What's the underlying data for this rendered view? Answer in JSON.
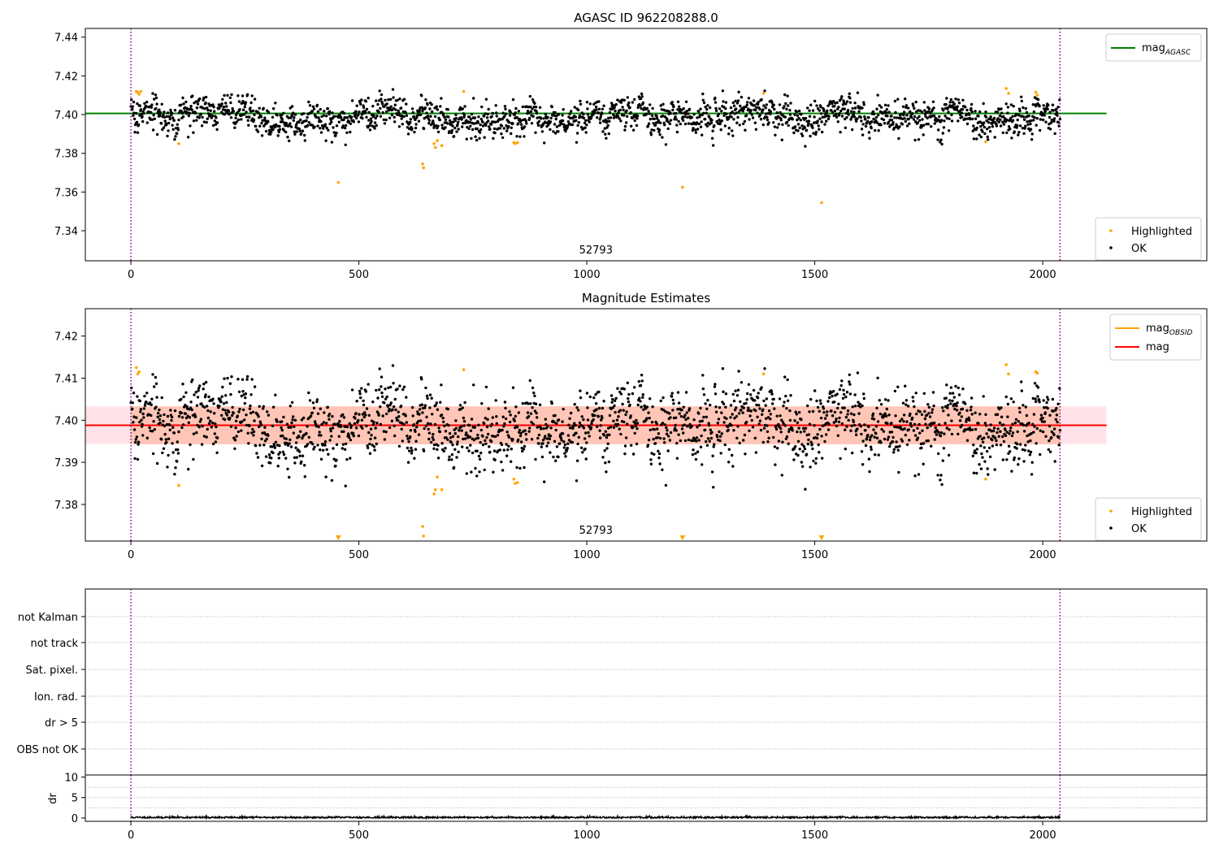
{
  "chart_data": [
    {
      "type": "scatter",
      "title": "AGASC ID 962208288.0",
      "xlim": [
        -100,
        2360
      ],
      "ylim": [
        7.3245,
        7.4445
      ],
      "xticks": [
        0,
        500,
        1000,
        1500,
        2000
      ],
      "yticks": [
        7.34,
        7.36,
        7.38,
        7.4,
        7.42,
        7.44
      ],
      "ytick_labels": [
        "7.34",
        "7.36",
        "7.38",
        "7.40",
        "7.42",
        "7.44"
      ],
      "obs_label": "52793",
      "obs_label_x": 1020,
      "obs_bounds": [
        0,
        2038
      ],
      "reference_line": {
        "name": "mag",
        "subscript": "AGASC",
        "value": 7.4006,
        "x_range": [
          -100,
          2140
        ],
        "color": "#008000"
      },
      "legend_lines": [
        {
          "name": "mag",
          "subscript": "AGASC",
          "color": "#008000"
        }
      ],
      "legend_points": [
        {
          "name": "Highlighted",
          "color": "#ffa500"
        },
        {
          "name": "OK",
          "color": "#000000"
        }
      ],
      "legend_lines_position": "top-right",
      "legend_points_position": "bottom-right",
      "series": [
        {
          "name": "OK",
          "color": "#000000",
          "generator": {
            "n": 2040,
            "x_start": 0,
            "x_end": 2038,
            "mean": 7.399,
            "wander": 0.0045,
            "noise": 0.004,
            "seed": 7
          }
        },
        {
          "name": "Highlighted",
          "color": "#ffa500",
          "points": [
            [
              12,
              7.412
            ],
            [
              15,
              7.4115
            ],
            [
              18,
              7.4105
            ],
            [
              22,
              7.412
            ],
            [
              105,
              7.385
            ],
            [
              455,
              7.365
            ],
            [
              640,
              7.3745
            ],
            [
              642,
              7.3725
            ],
            [
              665,
              7.385
            ],
            [
              668,
              7.383
            ],
            [
              672,
              7.3865
            ],
            [
              682,
              7.384
            ],
            [
              730,
              7.412
            ],
            [
              840,
              7.3855
            ],
            [
              843,
              7.385
            ],
            [
              848,
              7.3855
            ],
            [
              1210,
              7.3625
            ],
            [
              1388,
              7.411
            ],
            [
              1515,
              7.3545
            ],
            [
              1875,
              7.386
            ],
            [
              1920,
              7.4135
            ],
            [
              1925,
              7.411
            ],
            [
              1985,
              7.4115
            ],
            [
              1988,
              7.41
            ]
          ]
        }
      ]
    },
    {
      "type": "scatter",
      "title": "Magnitude Estimates",
      "xlim": [
        -100,
        2360
      ],
      "ylim": [
        7.3713,
        7.4265
      ],
      "xticks": [
        0,
        500,
        1000,
        1500,
        2000
      ],
      "yticks": [
        7.38,
        7.39,
        7.4,
        7.41,
        7.42
      ],
      "ytick_labels": [
        "7.38",
        "7.39",
        "7.40",
        "7.41",
        "7.42"
      ],
      "obs_label": "52793",
      "obs_label_x": 1020,
      "obs_bounds": [
        0,
        2038
      ],
      "mean_line": {
        "name": "mag",
        "value": 7.3988,
        "x_range": [
          -100,
          2140
        ],
        "color": "#ff0000"
      },
      "band_outer": {
        "low": 7.3943,
        "high": 7.4033,
        "x_range": [
          -100,
          2140
        ],
        "color": "#ffc0cb"
      },
      "band_inner": {
        "low": 7.3943,
        "high": 7.4033,
        "x_range": [
          0,
          2038
        ],
        "color": "#ffa07a"
      },
      "legend_lines": [
        {
          "name": "mag",
          "subscript": "OBSID",
          "color": "#ffa500"
        },
        {
          "name": "mag",
          "subscript": "",
          "color": "#ff0000"
        }
      ],
      "legend_points": [
        {
          "name": "Highlighted",
          "color": "#ffa500"
        },
        {
          "name": "OK",
          "color": "#000000"
        }
      ],
      "legend_lines_position": "top-right",
      "legend_points_position": "bottom-right",
      "out_of_range_markers": [
        455,
        1210,
        1515
      ],
      "series": [
        {
          "name": "OK",
          "color": "#000000",
          "generator": {
            "n": 2040,
            "x_start": 0,
            "x_end": 2038,
            "mean": 7.399,
            "wander": 0.0045,
            "noise": 0.004,
            "seed": 7
          }
        },
        {
          "name": "Highlighted",
          "color": "#ffa500",
          "points": [
            [
              12,
              7.4125
            ],
            [
              15,
              7.411
            ],
            [
              18,
              7.4115
            ],
            [
              105,
              7.3845
            ],
            [
              640,
              7.3748
            ],
            [
              642,
              7.3725
            ],
            [
              665,
              7.3825
            ],
            [
              668,
              7.3835
            ],
            [
              672,
              7.3865
            ],
            [
              682,
              7.3835
            ],
            [
              730,
              7.412
            ],
            [
              840,
              7.386
            ],
            [
              843,
              7.385
            ],
            [
              848,
              7.3852
            ],
            [
              1388,
              7.411
            ],
            [
              1875,
              7.386
            ],
            [
              1920,
              7.4132
            ],
            [
              1925,
              7.411
            ],
            [
              1985,
              7.4115
            ],
            [
              1988,
              7.4112
            ]
          ]
        }
      ]
    },
    {
      "type": "table",
      "title": "",
      "categories": [
        "not Kalman",
        "not track",
        "Sat. pixel.",
        "Ion. rad.",
        "dr > 5",
        "OBS not OK"
      ],
      "xlim": [
        -100,
        2360
      ],
      "obs_bounds": [
        0,
        2038
      ]
    },
    {
      "type": "line",
      "title": "",
      "ylabel": "dr",
      "xlim": [
        -100,
        2360
      ],
      "ylim": [
        -0.8,
        10.5
      ],
      "xticks": [
        0,
        500,
        1000,
        1500,
        2000
      ],
      "yticks": [
        0,
        5,
        10
      ],
      "obs_bounds": [
        0,
        2038
      ],
      "series": [
        {
          "name": "dr",
          "color": "#000000",
          "generator": {
            "n": 2040,
            "x_start": 0,
            "x_end": 2038,
            "mean": 0.15,
            "noise": 0.12,
            "seed": 11
          }
        }
      ]
    }
  ]
}
